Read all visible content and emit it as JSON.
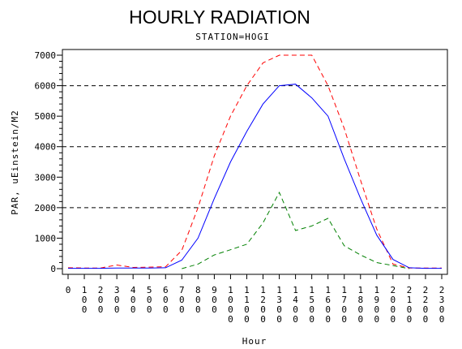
{
  "chart_data": {
    "type": "line",
    "title": "HOURLY RADIATION",
    "subtitle": "STATION=HOGI",
    "xlabel": "Hour",
    "ylabel": "PAR, uEinstein/M2",
    "x": [
      "0",
      "100",
      "200",
      "300",
      "400",
      "500",
      "600",
      "700",
      "800",
      "900",
      "1000",
      "1100",
      "1200",
      "1300",
      "1400",
      "1500",
      "1600",
      "1700",
      "1800",
      "1900",
      "2000",
      "2100",
      "2200",
      "2300"
    ],
    "ylim": [
      0,
      7000
    ],
    "yticks": [
      "0",
      "1000",
      "2000",
      "3000",
      "4000",
      "5000",
      "6000",
      "7000"
    ],
    "reference_lines": [
      2000,
      4000,
      6000
    ],
    "grid": false,
    "series": [
      {
        "color": "#ff0000",
        "style": "dashed",
        "values": [
          30,
          20,
          20,
          120,
          40,
          50,
          60,
          600,
          2000,
          3700,
          5000,
          6000,
          6750,
          7000,
          7000,
          7000,
          6000,
          4600,
          2900,
          1300,
          150,
          20,
          20,
          20
        ]
      },
      {
        "color": "#0000ff",
        "style": "solid",
        "values": [
          10,
          10,
          10,
          20,
          20,
          20,
          30,
          280,
          1000,
          2300,
          3500,
          4500,
          5400,
          6000,
          6050,
          5600,
          5000,
          3600,
          2300,
          1100,
          300,
          30,
          10,
          10
        ]
      },
      {
        "color": "#008000",
        "style": "dashed",
        "values": [
          null,
          null,
          null,
          null,
          null,
          null,
          null,
          0,
          150,
          450,
          620,
          800,
          1500,
          2500,
          1250,
          1400,
          1650,
          750,
          450,
          200,
          100,
          0,
          null,
          null
        ]
      }
    ]
  }
}
